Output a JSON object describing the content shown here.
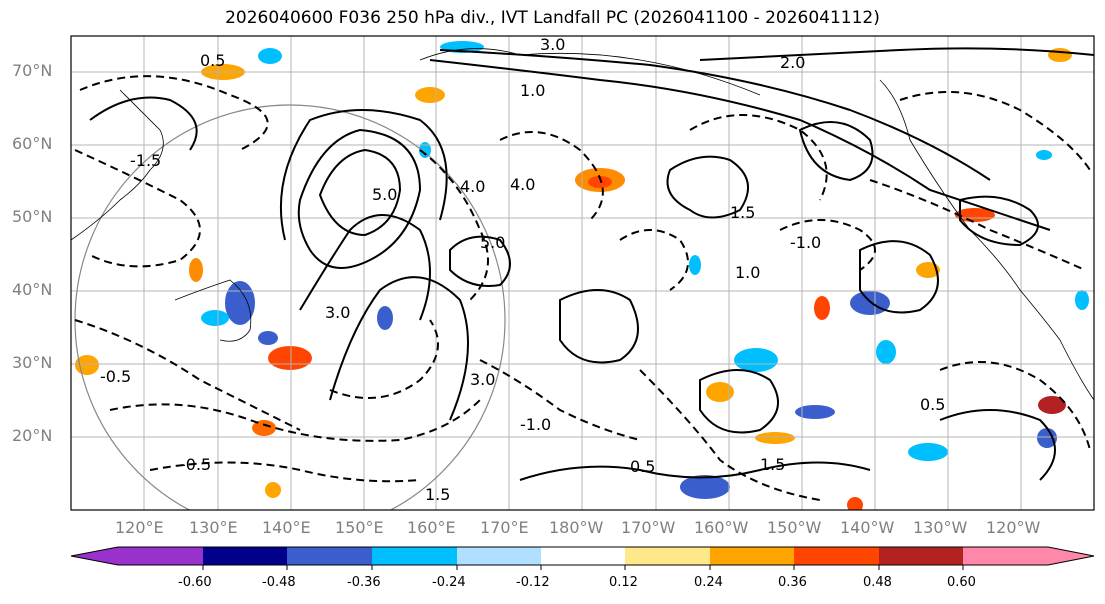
{
  "title": "2026040600 F036 250 hPa div., IVT Landfall PC (2026041100 - 2026041112)",
  "lat_labels": [
    "70°N",
    "60°N",
    "50°N",
    "40°N",
    "30°N",
    "20°N"
  ],
  "lon_labels": [
    "120°E",
    "130°E",
    "140°E",
    "150°E",
    "160°E",
    "170°E",
    "180°W",
    "170°W",
    "160°W",
    "150°W",
    "140°W",
    "130°W",
    "120°W"
  ],
  "map_extent": {
    "lon_min": 110,
    "lon_max": 250,
    "lat_min": 10,
    "lat_max": 75
  },
  "colorbar": {
    "ticks": [
      "-0.60",
      "-0.48",
      "-0.36",
      "-0.24",
      "-0.12",
      "0.12",
      "0.24",
      "0.36",
      "0.48",
      "0.60"
    ],
    "colors": [
      "#9932cc",
      "#00008b",
      "#3a5fcd",
      "#00bfff",
      "#b0e0ff",
      "#ffffff",
      "#ffe88a",
      "#ffa500",
      "#ff4500",
      "#b22222",
      "#ff88aa"
    ],
    "extend": "both"
  },
  "contour_labels": [
    "3.0",
    "2.0",
    "1.0",
    "1.5",
    "0.5",
    "-0.5",
    "-1.0",
    "-1.5",
    "3.0",
    "5.0",
    "4.0",
    "-0.5",
    "-1.0",
    "1.5",
    "0.5",
    "1.0",
    "5.0",
    "4.0",
    "3.0",
    "1.5",
    "0.5"
  ]
}
